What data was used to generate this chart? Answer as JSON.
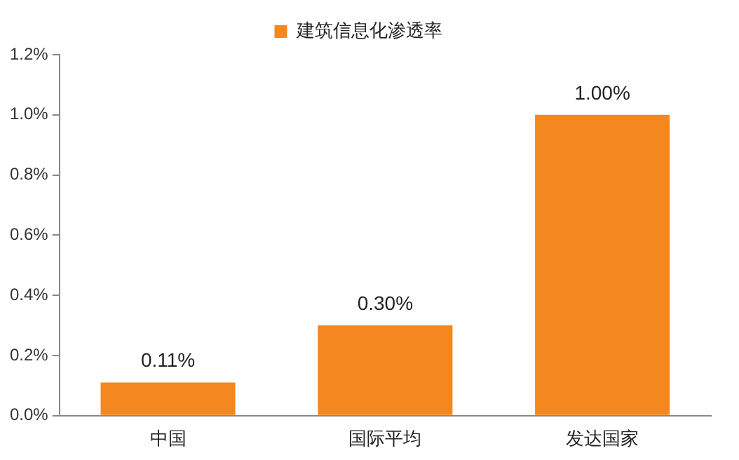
{
  "chart_data": {
    "type": "bar",
    "categories": [
      "中国",
      "国际平均",
      "发达国家"
    ],
    "series": [
      {
        "name": "建筑信息化渗透率",
        "color": "#f5871f",
        "values": [
          0.11,
          0.3,
          1.0
        ],
        "value_labels": [
          "0.11%",
          "0.30%",
          "1.00%"
        ]
      }
    ],
    "ylim": [
      0,
      1.2
    ],
    "yticks": [
      {
        "value": 0,
        "label": "0.0%"
      },
      {
        "value": 0.2,
        "label": "0.2%"
      },
      {
        "value": 0.4,
        "label": "0.4%"
      },
      {
        "value": 0.6,
        "label": "0.6%"
      },
      {
        "value": 0.8,
        "label": "0.8%"
      },
      {
        "value": 1.0,
        "label": "1.0%"
      },
      {
        "value": 1.2,
        "label": "1.2%"
      }
    ],
    "grid": false,
    "legend": "top"
  }
}
